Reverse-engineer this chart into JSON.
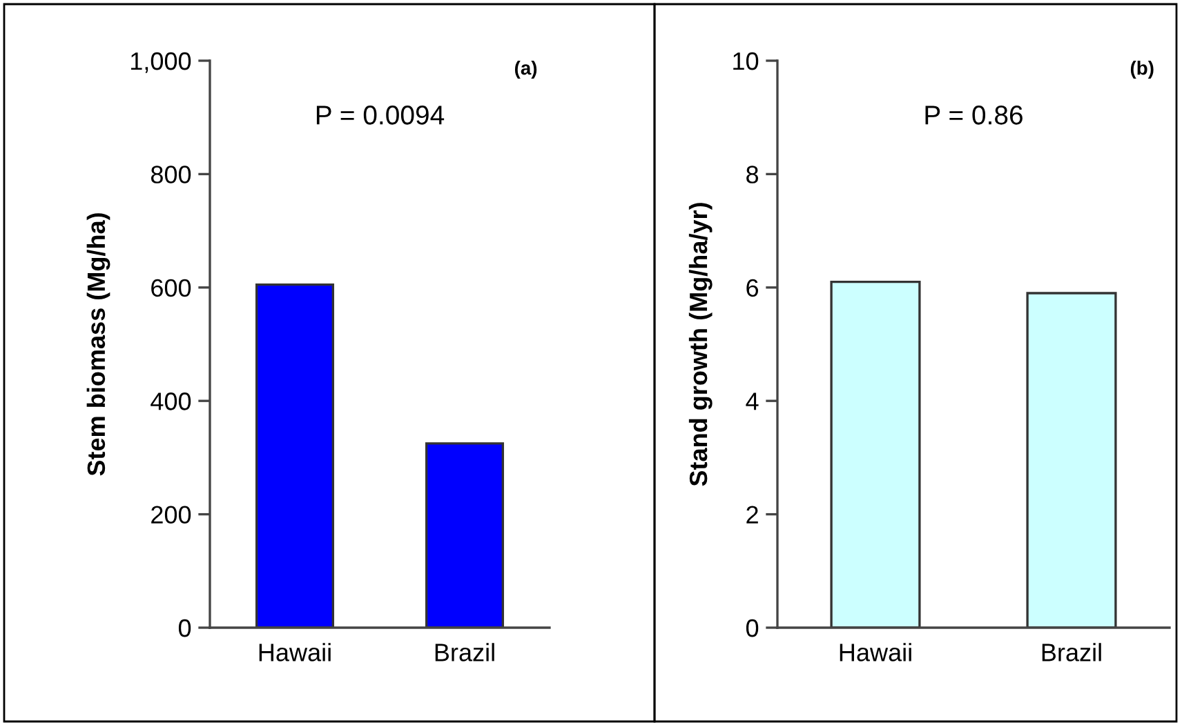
{
  "chart_data": [
    {
      "type": "bar",
      "categories": [
        "Hawaii",
        "Brazil"
      ],
      "values": [
        605,
        325
      ],
      "color": "#0000ff",
      "ylabel": "Stem biomass (Mg/ha)",
      "ylim": [
        0,
        1000
      ],
      "yticks": [
        0,
        200,
        400,
        600,
        800,
        {
          "value": 1000,
          "label": "1,000"
        }
      ],
      "grid": false,
      "legend": false,
      "annotations": [
        "(a)",
        "P = 0.0094"
      ]
    },
    {
      "type": "bar",
      "categories": [
        "Hawaii",
        "Brazil"
      ],
      "values": [
        6.1,
        5.9
      ],
      "color": "#ccffff",
      "ylabel": "Stand growth (Mg/ha/yr)",
      "ylim": [
        0,
        10
      ],
      "yticks": [
        0,
        2,
        4,
        6,
        8,
        10
      ],
      "grid": false,
      "legend": false,
      "annotations": [
        "(b)",
        "P = 0.86"
      ]
    }
  ]
}
